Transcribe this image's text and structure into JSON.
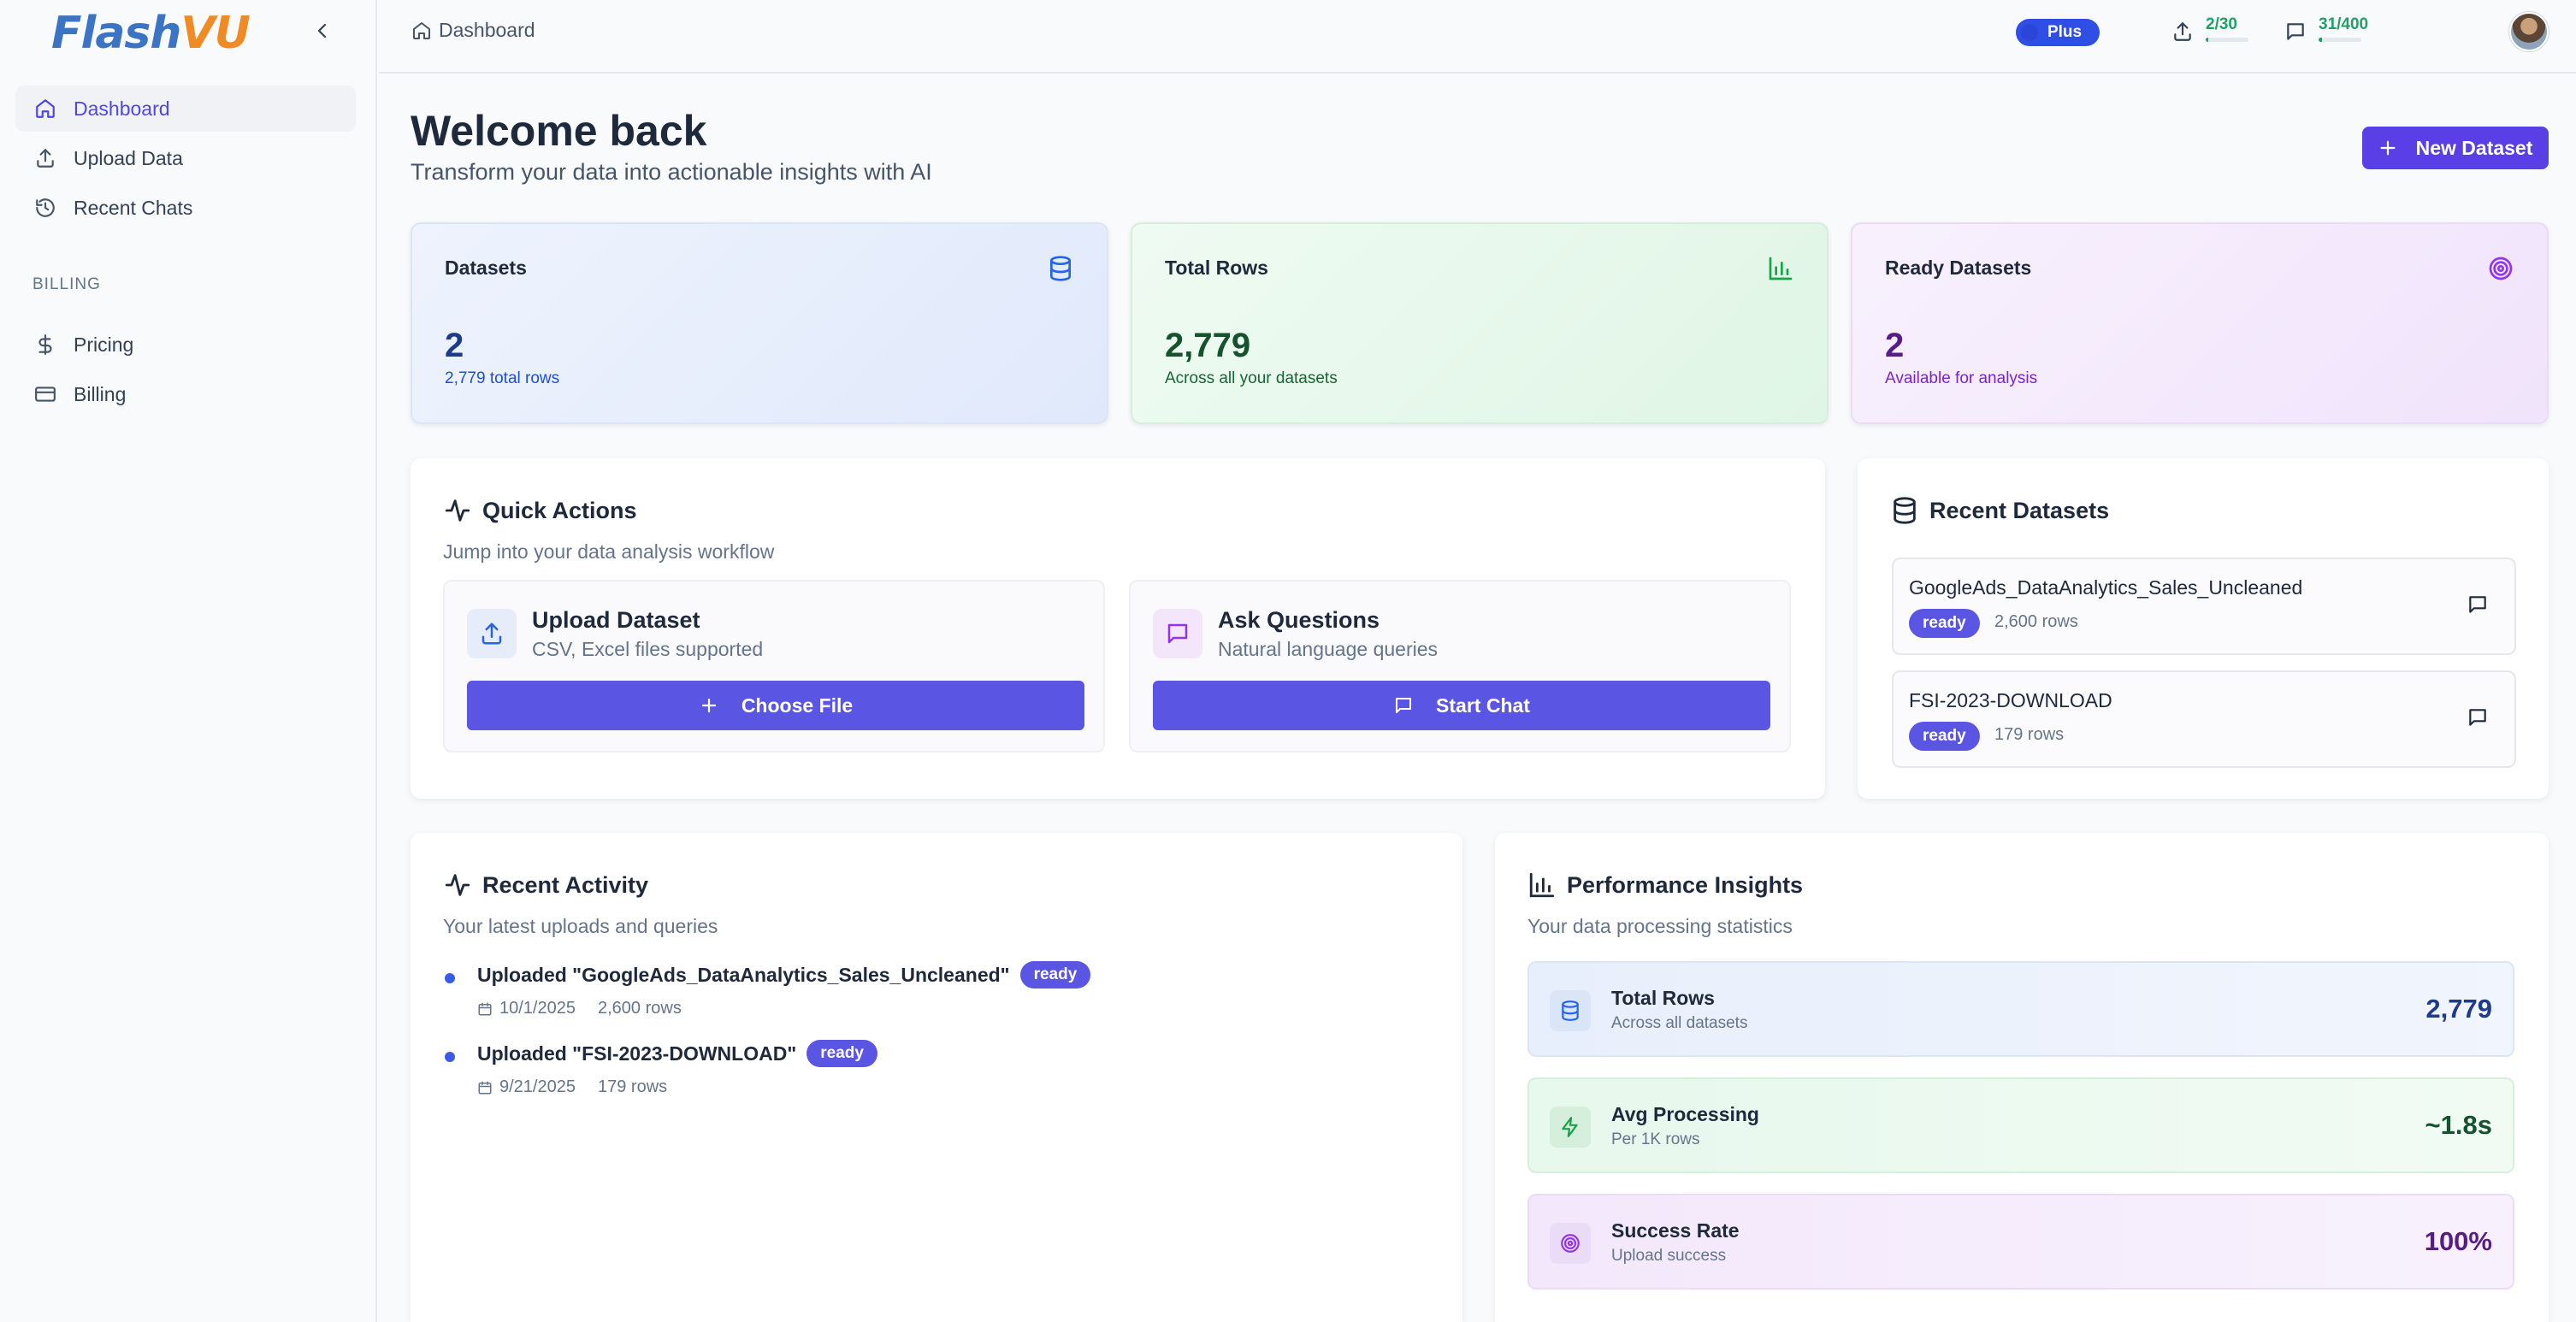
{
  "app": {
    "logo_part1": "Flash",
    "logo_part2": "VU"
  },
  "sidebar": {
    "items": [
      {
        "label": "Dashboard",
        "icon": "home-icon",
        "active": true
      },
      {
        "label": "Upload Data",
        "icon": "upload-icon"
      },
      {
        "label": "Recent Chats",
        "icon": "history-icon"
      }
    ],
    "billing_section_label": "BILLING",
    "billing_items": [
      {
        "label": "Pricing",
        "icon": "dollar-icon"
      },
      {
        "label": "Billing",
        "icon": "credit-card-icon"
      }
    ]
  },
  "topbar": {
    "breadcrumb": "Dashboard",
    "uploads_quota": {
      "text": "2/30",
      "used": 2,
      "limit": 30
    },
    "chats_quota": {
      "text": "31/400",
      "used": 31,
      "limit": 400
    },
    "plan": "Plus"
  },
  "header": {
    "title": "Welcome back",
    "subtitle": "Transform your data into actionable insights with AI",
    "new_dataset_label": "New Dataset"
  },
  "stats": [
    {
      "label": "Datasets",
      "value": "2",
      "sub": "2,779 total rows",
      "icon": "database-icon",
      "color": "#1e3a8a"
    },
    {
      "label": "Total Rows",
      "value": "2,779",
      "sub": "Across all your datasets",
      "icon": "bar-chart-icon",
      "color": "#14532d"
    },
    {
      "label": "Ready Datasets",
      "value": "2",
      "sub": "Available for analysis",
      "icon": "target-icon",
      "color": "#581c87"
    }
  ],
  "quick_actions": {
    "title": "Quick Actions",
    "subtitle": "Jump into your data analysis workflow",
    "upload": {
      "title": "Upload Dataset",
      "sub": "CSV, Excel files supported",
      "button": "Choose File"
    },
    "ask": {
      "title": "Ask Questions",
      "sub": "Natural language queries",
      "button": "Start Chat"
    }
  },
  "recent_datasets": {
    "title": "Recent Datasets",
    "items": [
      {
        "name": "GoogleAds_DataAnalytics_Sales_Uncleaned",
        "status": "ready",
        "rows": "2,600 rows"
      },
      {
        "name": "FSI-2023-DOWNLOAD",
        "status": "ready",
        "rows": "179 rows"
      }
    ]
  },
  "recent_activity": {
    "title": "Recent Activity",
    "subtitle": "Your latest uploads and queries",
    "items": [
      {
        "title": "Uploaded \"GoogleAds_DataAnalytics_Sales_Uncleaned\"",
        "status": "ready",
        "date": "10/1/2025",
        "rows": "2,600 rows"
      },
      {
        "title": "Uploaded \"FSI-2023-DOWNLOAD\"",
        "status": "ready",
        "date": "9/21/2025",
        "rows": "179 rows"
      }
    ]
  },
  "performance": {
    "title": "Performance Insights",
    "subtitle": "Your data processing statistics",
    "items": [
      {
        "title": "Total Rows",
        "sub": "Across all datasets",
        "value": "2,779",
        "icon": "database-icon"
      },
      {
        "title": "Avg Processing",
        "sub": "Per 1K rows",
        "value": "~1.8s",
        "icon": "lightning-icon"
      },
      {
        "title": "Success Rate",
        "sub": "Upload success",
        "value": "100%",
        "icon": "target-icon"
      }
    ]
  }
}
